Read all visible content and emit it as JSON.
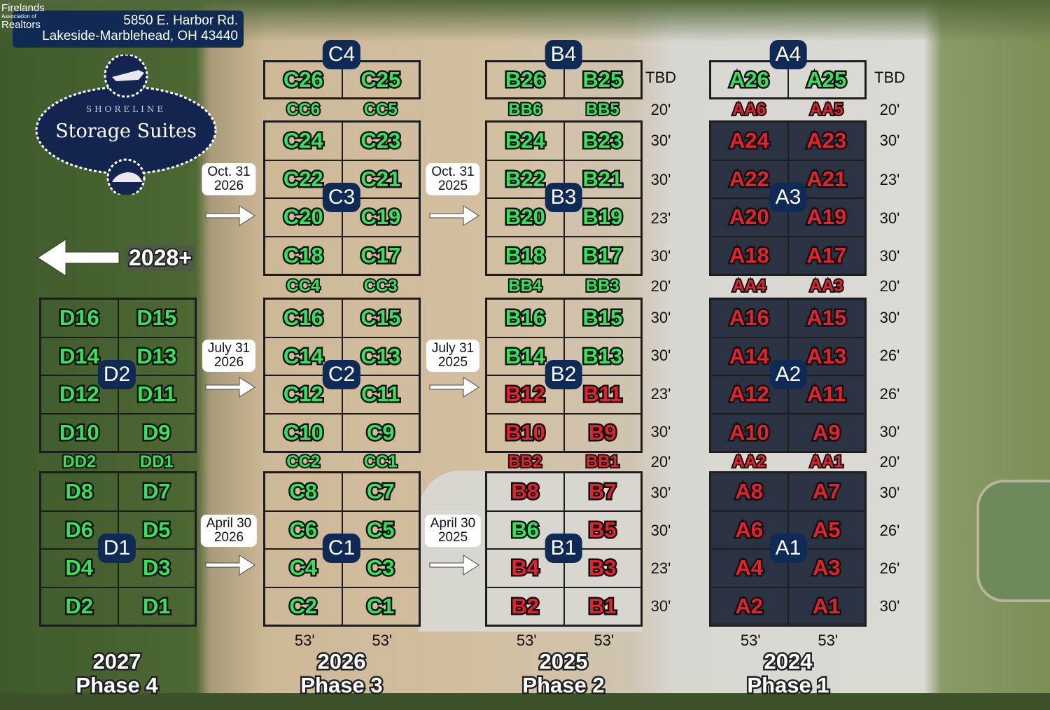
{
  "header": {
    "address_line1": "5850 E. Harbor Rd.",
    "address_line2": "Lakeside-Marblehead, OH 43440",
    "watermark": {
      "line1": "Firelands",
      "line2": "Association of",
      "line3": "Realtors"
    }
  },
  "logo": {
    "small": "SHORELINE",
    "big": "Storage Suites"
  },
  "future": {
    "label": "2028+"
  },
  "colors": {
    "green": "#33e35c",
    "red": "#e4212d",
    "badge": "#0f2a55"
  },
  "blocks": [
    {
      "id": "C4",
      "cells": [
        [
          "C26",
          "green"
        ],
        [
          "C25",
          "green"
        ]
      ]
    },
    {
      "id": "B4",
      "cells": [
        [
          "B26",
          "green"
        ],
        [
          "B25",
          "green"
        ]
      ]
    },
    {
      "id": "A4",
      "cells": [
        [
          "A26",
          "green"
        ],
        [
          "A25",
          "green"
        ]
      ]
    },
    {
      "id": "C3",
      "cells": [
        [
          "C24",
          "green"
        ],
        [
          "C23",
          "green"
        ],
        [
          "C22",
          "green"
        ],
        [
          "C21",
          "green"
        ],
        [
          "C20",
          "green"
        ],
        [
          "C19",
          "green"
        ],
        [
          "C18",
          "green"
        ],
        [
          "C17",
          "green"
        ]
      ]
    },
    {
      "id": "B3",
      "cells": [
        [
          "B24",
          "green"
        ],
        [
          "B23",
          "green"
        ],
        [
          "B22",
          "green"
        ],
        [
          "B21",
          "green"
        ],
        [
          "B20",
          "green"
        ],
        [
          "B19",
          "green"
        ],
        [
          "B18",
          "green"
        ],
        [
          "B17",
          "green"
        ]
      ]
    },
    {
      "id": "A3",
      "cells": [
        [
          "A24",
          "red"
        ],
        [
          "A23",
          "red"
        ],
        [
          "A22",
          "red"
        ],
        [
          "A21",
          "red"
        ],
        [
          "A20",
          "red"
        ],
        [
          "A19",
          "red"
        ],
        [
          "A18",
          "red"
        ],
        [
          "A17",
          "red"
        ]
      ]
    },
    {
      "id": "D2",
      "cells": [
        [
          "D16",
          "green"
        ],
        [
          "D15",
          "green"
        ],
        [
          "D14",
          "green"
        ],
        [
          "D13",
          "green"
        ],
        [
          "D12",
          "green"
        ],
        [
          "D11",
          "green"
        ],
        [
          "D10",
          "green"
        ],
        [
          "D9",
          "green"
        ]
      ]
    },
    {
      "id": "C2",
      "cells": [
        [
          "C16",
          "green"
        ],
        [
          "C15",
          "green"
        ],
        [
          "C14",
          "green"
        ],
        [
          "C13",
          "green"
        ],
        [
          "C12",
          "green"
        ],
        [
          "C11",
          "green"
        ],
        [
          "C10",
          "green"
        ],
        [
          "C9",
          "green"
        ]
      ]
    },
    {
      "id": "B2",
      "cells": [
        [
          "B16",
          "green"
        ],
        [
          "B15",
          "green"
        ],
        [
          "B14",
          "green"
        ],
        [
          "B13",
          "green"
        ],
        [
          "B12",
          "red"
        ],
        [
          "B11",
          "red"
        ],
        [
          "B10",
          "red"
        ],
        [
          "B9",
          "red"
        ]
      ]
    },
    {
      "id": "A2",
      "cells": [
        [
          "A16",
          "red"
        ],
        [
          "A15",
          "red"
        ],
        [
          "A14",
          "red"
        ],
        [
          "A13",
          "red"
        ],
        [
          "A12",
          "red"
        ],
        [
          "A11",
          "red"
        ],
        [
          "A10",
          "red"
        ],
        [
          "A9",
          "red"
        ]
      ]
    },
    {
      "id": "D1",
      "cells": [
        [
          "D8",
          "green"
        ],
        [
          "D7",
          "green"
        ],
        [
          "D6",
          "green"
        ],
        [
          "D5",
          "green"
        ],
        [
          "D4",
          "green"
        ],
        [
          "D3",
          "green"
        ],
        [
          "D2",
          "green"
        ],
        [
          "D1",
          "green"
        ]
      ]
    },
    {
      "id": "C1",
      "cells": [
        [
          "C8",
          "green"
        ],
        [
          "C7",
          "green"
        ],
        [
          "C6",
          "green"
        ],
        [
          "C5",
          "green"
        ],
        [
          "C4",
          "green"
        ],
        [
          "C3",
          "green"
        ],
        [
          "C2",
          "green"
        ],
        [
          "C1",
          "green"
        ]
      ]
    },
    {
      "id": "B1",
      "cells": [
        [
          "B8",
          "red"
        ],
        [
          "B7",
          "red"
        ],
        [
          "B6",
          "green"
        ],
        [
          "B5",
          "red"
        ],
        [
          "B4",
          "red"
        ],
        [
          "B3",
          "red"
        ],
        [
          "B2",
          "red"
        ],
        [
          "B1",
          "red"
        ]
      ]
    },
    {
      "id": "A1",
      "cells": [
        [
          "A8",
          "red"
        ],
        [
          "A7",
          "red"
        ],
        [
          "A6",
          "red"
        ],
        [
          "A5",
          "red"
        ],
        [
          "A4",
          "red"
        ],
        [
          "A3",
          "red"
        ],
        [
          "A2",
          "red"
        ],
        [
          "A1",
          "red"
        ]
      ]
    }
  ],
  "aisles": [
    {
      "column": "C",
      "row": 0,
      "cells": [
        [
          "CC6",
          "green"
        ],
        [
          "CC5",
          "green"
        ]
      ]
    },
    {
      "column": "B",
      "row": 0,
      "cells": [
        [
          "BB6",
          "green"
        ],
        [
          "BB5",
          "green"
        ]
      ]
    },
    {
      "column": "A",
      "row": 0,
      "cells": [
        [
          "AA6",
          "red"
        ],
        [
          "AA5",
          "red"
        ]
      ]
    },
    {
      "column": "C",
      "row": 1,
      "cells": [
        [
          "CC4",
          "green"
        ],
        [
          "CC3",
          "green"
        ]
      ]
    },
    {
      "column": "B",
      "row": 1,
      "cells": [
        [
          "BB4",
          "green"
        ],
        [
          "BB3",
          "green"
        ]
      ]
    },
    {
      "column": "A",
      "row": 1,
      "cells": [
        [
          "AA4",
          "red"
        ],
        [
          "AA3",
          "red"
        ]
      ]
    },
    {
      "column": "D",
      "row": 2,
      "cells": [
        [
          "DD2",
          "green"
        ],
        [
          "DD1",
          "green"
        ]
      ]
    },
    {
      "column": "C",
      "row": 2,
      "cells": [
        [
          "CC2",
          "green"
        ],
        [
          "CC1",
          "green"
        ]
      ]
    },
    {
      "column": "B",
      "row": 2,
      "cells": [
        [
          "BB2",
          "red"
        ],
        [
          "BB1",
          "red"
        ]
      ]
    },
    {
      "column": "A",
      "row": 2,
      "cells": [
        [
          "AA2",
          "red"
        ],
        [
          "AA1",
          "red"
        ]
      ]
    }
  ],
  "depths_between_b_a": [
    "TBD",
    "20'",
    "30'",
    "30'",
    "23'",
    "30'",
    "20'",
    "30'",
    "30'",
    "23'",
    "30'",
    "20'",
    "30'",
    "30'",
    "23'",
    "30'"
  ],
  "depths_right_of_a": [
    "TBD",
    "20'",
    "30'",
    "23'",
    "30'",
    "30'",
    "20'",
    "30'",
    "26'",
    "26'",
    "30'",
    "20'",
    "30'",
    "26'",
    "26'",
    "30'"
  ],
  "widths": [
    {
      "column": "C",
      "values": [
        "53'",
        "53'"
      ]
    },
    {
      "column": "B",
      "values": [
        "53'",
        "53'"
      ]
    },
    {
      "column": "A",
      "values": [
        "53'",
        "53'"
      ]
    }
  ],
  "dates": [
    {
      "id": "c-top",
      "line1": "Oct. 31",
      "line2": "2026"
    },
    {
      "id": "b-top",
      "line1": "Oct. 31",
      "line2": "2025"
    },
    {
      "id": "c-mid",
      "line1": "July 31",
      "line2": "2026"
    },
    {
      "id": "b-mid",
      "line1": "July 31",
      "line2": "2025"
    },
    {
      "id": "c-bot",
      "line1": "April 30",
      "line2": "2026"
    },
    {
      "id": "b-bot",
      "line1": "April 30",
      "line2": "2025"
    }
  ],
  "phases": [
    {
      "column": "D",
      "year": "2027",
      "phase": "Phase 4"
    },
    {
      "column": "C",
      "year": "2026",
      "phase": "Phase 3"
    },
    {
      "column": "B",
      "year": "2025",
      "phase": "Phase 2"
    },
    {
      "column": "A",
      "year": "2024",
      "phase": "Phase 1"
    }
  ]
}
